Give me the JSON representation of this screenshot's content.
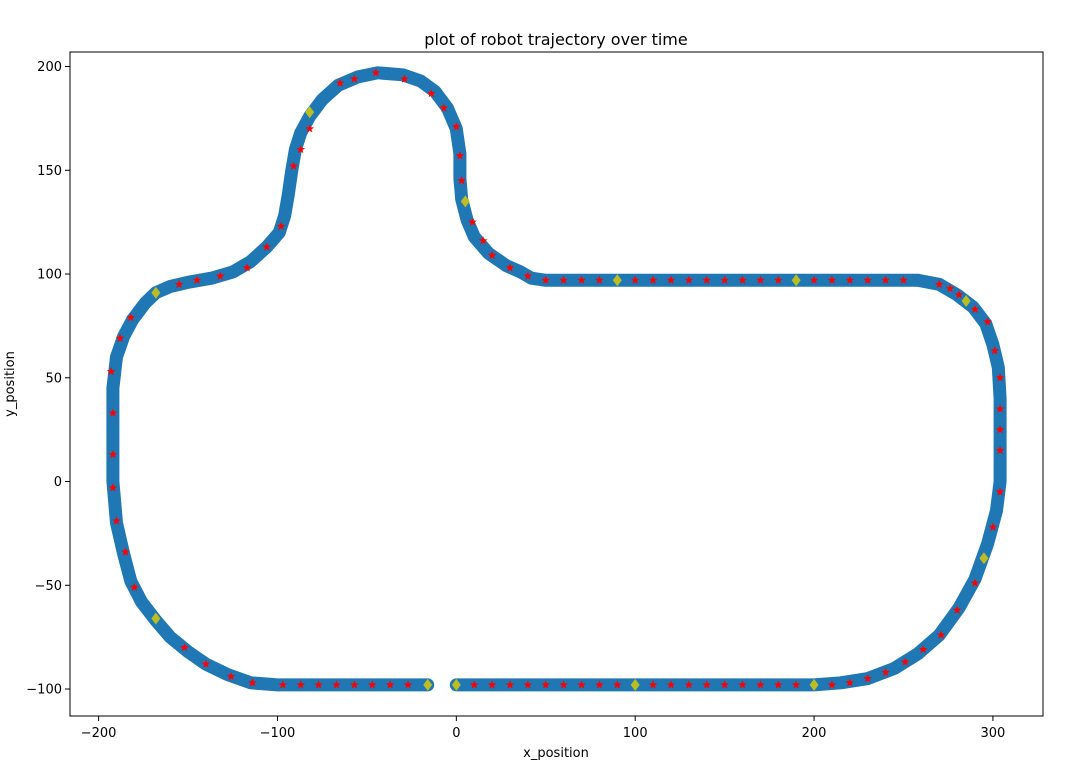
{
  "chart_data": {
    "type": "scatter",
    "title": "plot of robot trajectory over time",
    "xlabel": "x_position",
    "ylabel": "y_position",
    "xlim": [
      -216,
      328
    ],
    "ylim": [
      -113,
      207
    ],
    "xticks": [
      -200,
      -100,
      0,
      100,
      200,
      300
    ],
    "xtick_labels": [
      "−200",
      "−100",
      "0",
      "100",
      "200",
      "300"
    ],
    "yticks": [
      -100,
      -50,
      0,
      50,
      100,
      150,
      200
    ],
    "ytick_labels": [
      "−100",
      "−50",
      "0",
      "50",
      "100",
      "150",
      "200"
    ],
    "grid": false,
    "series": [
      {
        "marker": "thick-line",
        "color": "#1f77b4",
        "points": [
          [
            0,
            -98
          ],
          [
            100,
            -98
          ],
          [
            200,
            -98
          ],
          [
            215,
            -97
          ],
          [
            230,
            -95
          ],
          [
            245,
            -90
          ],
          [
            258,
            -83
          ],
          [
            270,
            -74
          ],
          [
            281,
            -61
          ],
          [
            290,
            -47
          ],
          [
            297,
            -30
          ],
          [
            302,
            -14
          ],
          [
            304,
            0
          ],
          [
            304,
            20
          ],
          [
            304,
            40
          ],
          [
            303,
            55
          ],
          [
            300,
            66
          ],
          [
            296,
            76
          ],
          [
            289,
            84
          ],
          [
            280,
            90
          ],
          [
            270,
            95
          ],
          [
            258,
            97
          ],
          [
            240,
            97
          ],
          [
            150,
            97
          ],
          [
            50,
            97
          ],
          [
            42,
            98
          ],
          [
            36,
            101
          ],
          [
            28,
            104
          ],
          [
            18,
            110
          ],
          [
            10,
            118
          ],
          [
            6,
            126
          ],
          [
            3,
            136
          ],
          [
            2,
            146
          ],
          [
            2,
            158
          ],
          [
            0,
            170
          ],
          [
            -5,
            180
          ],
          [
            -12,
            188
          ],
          [
            -20,
            193
          ],
          [
            -30,
            196
          ],
          [
            -44,
            197
          ],
          [
            -55,
            195
          ],
          [
            -66,
            191
          ],
          [
            -75,
            184
          ],
          [
            -82,
            176
          ],
          [
            -87,
            168
          ],
          [
            -90,
            160
          ],
          [
            -92,
            150
          ],
          [
            -94,
            138
          ],
          [
            -96,
            128
          ],
          [
            -99,
            120
          ],
          [
            -106,
            113
          ],
          [
            -115,
            106
          ],
          [
            -125,
            101
          ],
          [
            -137,
            98
          ],
          [
            -150,
            96
          ],
          [
            -160,
            94
          ],
          [
            -168,
            91
          ],
          [
            -174,
            86
          ],
          [
            -181,
            78
          ],
          [
            -186,
            70
          ],
          [
            -190,
            60
          ],
          [
            -192,
            45
          ],
          [
            -192,
            0
          ],
          [
            -190,
            -20
          ],
          [
            -186,
            -35
          ],
          [
            -182,
            -48
          ],
          [
            -176,
            -58
          ],
          [
            -168,
            -67
          ],
          [
            -160,
            -75
          ],
          [
            -150,
            -82
          ],
          [
            -140,
            -88
          ],
          [
            -128,
            -93
          ],
          [
            -115,
            -97
          ],
          [
            -100,
            -98
          ],
          [
            -16,
            -98
          ]
        ]
      },
      {
        "marker": "star",
        "color": "#ff0000",
        "points": [
          [
            -97,
            -98
          ],
          [
            -87,
            -98
          ],
          [
            -77,
            -98
          ],
          [
            -67,
            -98
          ],
          [
            -57,
            -98
          ],
          [
            -47,
            -98
          ],
          [
            -37,
            -98
          ],
          [
            -27,
            -98
          ],
          [
            10,
            -98
          ],
          [
            20,
            -98
          ],
          [
            30,
            -98
          ],
          [
            40,
            -98
          ],
          [
            50,
            -98
          ],
          [
            60,
            -98
          ],
          [
            70,
            -98
          ],
          [
            80,
            -98
          ],
          [
            90,
            -98
          ],
          [
            110,
            -98
          ],
          [
            120,
            -98
          ],
          [
            130,
            -98
          ],
          [
            140,
            -98
          ],
          [
            150,
            -98
          ],
          [
            160,
            -98
          ],
          [
            170,
            -98
          ],
          [
            180,
            -98
          ],
          [
            190,
            -98
          ],
          [
            210,
            -98
          ],
          [
            220,
            -97
          ],
          [
            230,
            -95
          ],
          [
            240,
            -92
          ],
          [
            251,
            -87
          ],
          [
            261,
            -81
          ],
          [
            271,
            -74
          ],
          [
            280,
            -62
          ],
          [
            290,
            -49
          ],
          [
            300,
            -22
          ],
          [
            304,
            -5
          ],
          [
            304,
            15
          ],
          [
            304,
            25
          ],
          [
            304,
            35
          ],
          [
            304,
            50
          ],
          [
            301,
            63
          ],
          [
            297,
            77
          ],
          [
            290,
            83
          ],
          [
            281,
            90
          ],
          [
            276,
            93
          ],
          [
            270,
            95
          ],
          [
            250,
            97
          ],
          [
            240,
            97
          ],
          [
            230,
            97
          ],
          [
            220,
            97
          ],
          [
            210,
            97
          ],
          [
            200,
            97
          ],
          [
            180,
            97
          ],
          [
            170,
            97
          ],
          [
            160,
            97
          ],
          [
            150,
            97
          ],
          [
            140,
            97
          ],
          [
            130,
            97
          ],
          [
            120,
            97
          ],
          [
            110,
            97
          ],
          [
            100,
            97
          ],
          [
            80,
            97
          ],
          [
            70,
            97
          ],
          [
            60,
            97
          ],
          [
            50,
            97
          ],
          [
            40,
            99
          ],
          [
            30,
            103
          ],
          [
            20,
            109
          ],
          [
            15,
            116
          ],
          [
            9,
            125
          ],
          [
            3,
            145
          ],
          [
            2,
            157
          ],
          [
            0,
            171
          ],
          [
            -7,
            180
          ],
          [
            -14,
            187
          ],
          [
            -29,
            194
          ],
          [
            -45,
            197
          ],
          [
            -57,
            194
          ],
          [
            -65,
            192
          ],
          [
            -82,
            170
          ],
          [
            -87,
            160
          ],
          [
            -91,
            152
          ],
          [
            -98,
            123
          ],
          [
            -106,
            113
          ],
          [
            -117,
            103
          ],
          [
            -132,
            99
          ],
          [
            -145,
            97
          ],
          [
            -155,
            95
          ],
          [
            -182,
            79
          ],
          [
            -188,
            69
          ],
          [
            -193,
            53
          ],
          [
            -192,
            33
          ],
          [
            -192,
            13
          ],
          [
            -192,
            -3
          ],
          [
            -190,
            -19
          ],
          [
            -185,
            -34
          ],
          [
            -180,
            -51
          ],
          [
            -152,
            -80
          ],
          [
            -140,
            -88
          ],
          [
            -126,
            -94
          ],
          [
            -114,
            -97
          ]
        ]
      },
      {
        "marker": "diamond",
        "color": "#bcbd22",
        "points": [
          [
            -16,
            -98
          ],
          [
            0,
            -98
          ],
          [
            100,
            -98
          ],
          [
            200,
            -98
          ],
          [
            295,
            -37
          ],
          [
            285,
            87
          ],
          [
            190,
            97
          ],
          [
            90,
            97
          ],
          [
            5,
            135
          ],
          [
            -82,
            178
          ],
          [
            -168,
            91
          ],
          [
            -168,
            -66
          ]
        ]
      }
    ]
  }
}
